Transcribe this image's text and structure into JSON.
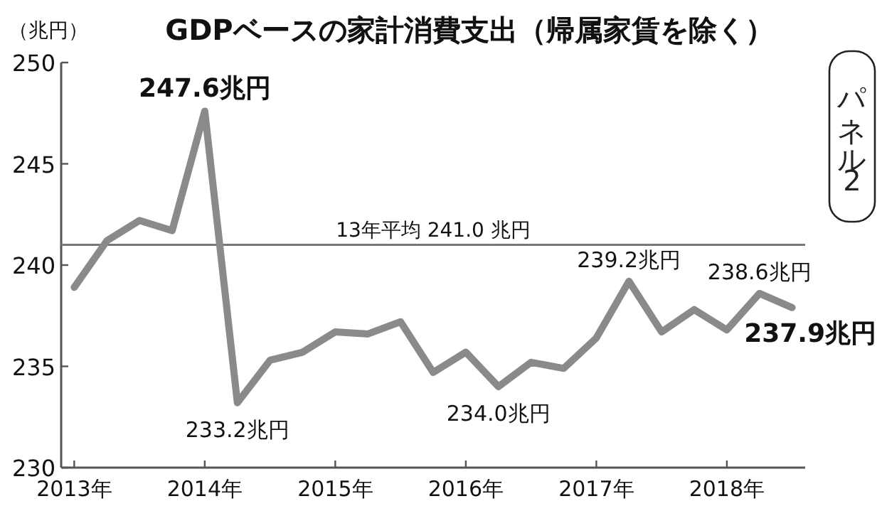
{
  "chart_data": {
    "type": "line",
    "title": "GDPベースの家計消費支出（帰属家賃を除く）",
    "x": [
      2013,
      2013.25,
      2013.5,
      2013.75,
      2014,
      2014.25,
      2014.5,
      2014.75,
      2015,
      2015.25,
      2015.5,
      2015.75,
      2016,
      2016.25,
      2016.5,
      2016.75,
      2017,
      2017.25,
      2017.5,
      2017.75,
      2018,
      2018.25,
      2018.5
    ],
    "series": [
      {
        "color": "#8a8a8a",
        "values": [
          238.9,
          241.2,
          242.2,
          241.7,
          247.6,
          233.2,
          235.3,
          235.7,
          236.7,
          236.6,
          237.2,
          234.7,
          235.7,
          234.0,
          235.2,
          234.9,
          236.4,
          239.2,
          236.7,
          237.8,
          236.8,
          238.6,
          237.9
        ]
      }
    ],
    "xlim": [
      2012.9,
      2018.6
    ],
    "xticks": [
      {
        "value": 2013,
        "label": "2013年"
      },
      {
        "value": 2014,
        "label": "2014年"
      },
      {
        "value": 2015,
        "label": "2015年"
      },
      {
        "value": 2016,
        "label": "2016年"
      },
      {
        "value": 2017,
        "label": "2017年"
      },
      {
        "value": 2018,
        "label": "2018年"
      }
    ],
    "ylim": [
      230,
      250
    ],
    "yticks": [
      230,
      235,
      240,
      245,
      250
    ],
    "ref_lines": [
      {
        "axis": "y",
        "value": 241.0,
        "label": "13年平均 241.0 兆円",
        "color": "#777777"
      }
    ],
    "annotations": [
      {
        "text": "247.6兆円",
        "x": 2014,
        "y": 247.6
      },
      {
        "text": "233.2兆円",
        "x": 2014.25,
        "y": 233.2
      },
      {
        "text": "234.0兆円",
        "x": 2016.25,
        "y": 234.0
      },
      {
        "text": "239.2兆円",
        "x": 2017.25,
        "y": 239.2
      },
      {
        "text": "238.6兆円",
        "x": 2018.25,
        "y": 238.6
      },
      {
        "text": "237.9兆円",
        "x": 2018.5,
        "y": 237.9
      },
      "（兆円）",
      "パネル2"
    ],
    "marker": "none",
    "line_style": "solid"
  }
}
